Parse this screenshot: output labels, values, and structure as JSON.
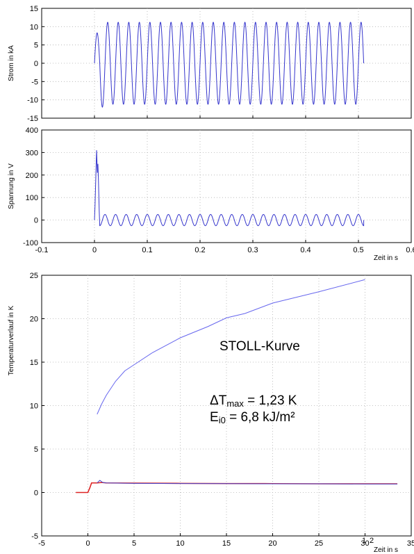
{
  "chart_data": [
    {
      "type": "line",
      "id": "current",
      "ylabel": "Strom in kA",
      "xlim": [
        -0.1,
        0.6
      ],
      "ylim": [
        -15,
        15
      ],
      "xticks": [
        -0.1,
        0,
        0.1,
        0.2,
        0.3,
        0.4,
        0.5,
        0.6
      ],
      "yticks": [
        -15,
        -10,
        -5,
        0,
        5,
        10,
        15
      ],
      "xtick_labels": [],
      "ytick_labels": [
        "-15",
        "-10",
        "-5",
        "0",
        "5",
        "10",
        "15"
      ],
      "grid": true,
      "series": [
        {
          "color": "#3333cc",
          "waveform": "sine",
          "t_start": 0.0,
          "t_end": 0.51,
          "frequency_hz": 50,
          "amplitude": 11.2,
          "first_peak": 8.3,
          "first_trough": -12.0
        }
      ]
    },
    {
      "type": "line",
      "id": "voltage",
      "ylabel": "Spannung in V",
      "xlabel": "Zeit in s",
      "xlim": [
        -0.1,
        0.6
      ],
      "ylim": [
        -100,
        400
      ],
      "xticks": [
        -0.1,
        0,
        0.1,
        0.2,
        0.3,
        0.4,
        0.5,
        0.6
      ],
      "yticks": [
        -100,
        0,
        100,
        200,
        300,
        400
      ],
      "xtick_labels": [
        "-0.1",
        "0",
        "0.1",
        "0.2",
        "0.3",
        "0.4",
        "0.5",
        "0.6"
      ],
      "ytick_labels": [
        "-100",
        "0",
        "100",
        "200",
        "300",
        "400"
      ],
      "grid": true,
      "series": [
        {
          "color": "#3333cc",
          "waveform": "spike-then-sine",
          "t_start": 0.0,
          "t_end": 0.51,
          "spike_peak": 310,
          "spike_time": 0.004,
          "frequency_hz": 50,
          "amplitude": 25,
          "offset": 0
        }
      ]
    },
    {
      "type": "line",
      "id": "temperature",
      "ylabel": "Temperaturverlauf in K",
      "xlabel": "Zeit in s",
      "xlim": [
        -5,
        35
      ],
      "ylim": [
        -5,
        25
      ],
      "xticks": [
        -5,
        0,
        5,
        10,
        15,
        20,
        25,
        30,
        35
      ],
      "yticks": [
        -5,
        0,
        5,
        10,
        15,
        20,
        25
      ],
      "xtick_labels": [
        "-5",
        "0",
        "5",
        "10",
        "15",
        "20",
        "25",
        "30",
        "35"
      ],
      "ytick_labels": [
        "-5",
        "0",
        "5",
        "10",
        "15",
        "20",
        "25"
      ],
      "grid": true,
      "series": [
        {
          "color": "#6666ee",
          "label": "STOLL-Kurve",
          "x": [
            1,
            1.5,
            2,
            3,
            4,
            5,
            7,
            10,
            13,
            15,
            17,
            20,
            25,
            30
          ],
          "y": [
            9.0,
            10.2,
            11.2,
            12.8,
            14.0,
            14.7,
            16.1,
            17.8,
            19.1,
            20.1,
            20.6,
            21.8,
            23.1,
            24.5
          ]
        },
        {
          "color": "#dd2222",
          "label": "1",
          "x": [
            -1.3,
            0,
            0.2,
            0.4,
            1,
            1.5,
            2,
            5,
            10,
            15,
            20,
            25,
            30,
            33.5
          ],
          "y": [
            0,
            0,
            0.5,
            1.1,
            1.1,
            1.15,
            1.1,
            1.08,
            1.05,
            1.03,
            1.02,
            1.0,
            1.0,
            1.0
          ]
        },
        {
          "color": "#4444cc",
          "label": "2",
          "x": [
            1,
            1.3,
            1.6,
            2,
            5,
            10,
            15,
            20,
            25,
            30,
            33.5
          ],
          "y": [
            1.1,
            1.4,
            1.15,
            1.1,
            1.05,
            1.03,
            1.02,
            1.0,
            1.0,
            0.98,
            0.98
          ]
        }
      ],
      "annotations": {
        "curve_name": "STOLL-Kurve",
        "dt_prefix": "ΔT",
        "dt_sub": "max",
        "dt_suffix": " = 1,23 K",
        "e_prefix": "E",
        "e_sub": "i0",
        "e_suffix": " = 6,8 kJ/m²",
        "line_label_1": "1",
        "line_label_2": "2"
      }
    }
  ]
}
